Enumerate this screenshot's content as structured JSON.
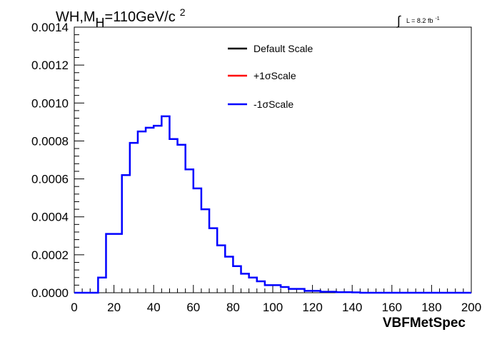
{
  "chart_data": {
    "type": "histogram",
    "title_text": {
      "main": "WH,M",
      "sub": "H",
      "rest": "=110GeV/c",
      "sup": "2"
    },
    "lumi_text": {
      "integral": "∫",
      "label": "L = 8.2 fb",
      "sup": "-1"
    },
    "xlabel": "VBFMetSpec",
    "xlim": [
      0,
      200
    ],
    "ylim": [
      0,
      0.0014
    ],
    "x_ticks": [
      "0",
      "20",
      "40",
      "60",
      "80",
      "100",
      "120",
      "140",
      "160",
      "180",
      "200"
    ],
    "y_ticks": [
      "0.0000",
      "0.0002",
      "0.0004",
      "0.0006",
      "0.0008",
      "0.0010",
      "0.0012",
      "0.0014"
    ],
    "bin_width": 4,
    "legend_position": "top-center",
    "legend": [
      {
        "label": "Default Scale",
        "color": "#000000"
      },
      {
        "label": "+1σScale",
        "color": "#ff0000"
      },
      {
        "label": "-1σScale",
        "color": "#0000ff"
      }
    ],
    "series": [
      {
        "name": "-1σScale",
        "color": "#0000ff",
        "bin_edges_start": 0,
        "values": [
          0,
          0,
          0,
          8e-05,
          0.00031,
          0.00031,
          0.00062,
          0.00079,
          0.00085,
          0.00087,
          0.00088,
          0.00093,
          0.00081,
          0.00078,
          0.00065,
          0.00055,
          0.00044,
          0.00034,
          0.00025,
          0.00019,
          0.00014,
          0.0001,
          8e-05,
          6e-05,
          4e-05,
          4e-05,
          3e-05,
          2e-05,
          2e-05,
          1e-05,
          1e-05,
          5e-06,
          5e-06,
          3e-06,
          3e-06,
          2e-06,
          0,
          0,
          0,
          0,
          0,
          0,
          0,
          0,
          0,
          0,
          0,
          0,
          0,
          0
        ]
      }
    ]
  }
}
